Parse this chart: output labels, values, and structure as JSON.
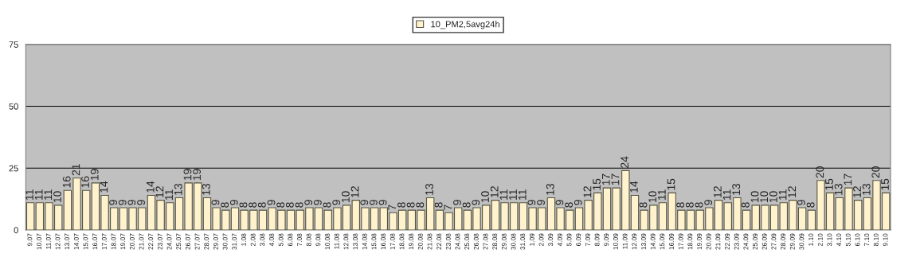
{
  "chart_data": {
    "type": "bar",
    "categories": [
      "9.07",
      "10.07",
      "11.07",
      "12.07",
      "13.07",
      "14.07",
      "15.07",
      "16.07",
      "17.07",
      "18.07",
      "19.07",
      "20.07",
      "21.07",
      "22.07",
      "23.07",
      "24.07",
      "25.07",
      "26.07",
      "27.07",
      "28.07",
      "29.07",
      "30.07",
      "31.07",
      "1.08",
      "2.08",
      "3.08",
      "4.08",
      "5.08",
      "6.08",
      "7.08",
      "8.08",
      "9.08",
      "10.08",
      "11.08",
      "12.08",
      "13.08",
      "14.08",
      "15.08",
      "16.08",
      "17.08",
      "18.08",
      "19.08",
      "20.08",
      "21.08",
      "22.08",
      "23.08",
      "24.08",
      "25.08",
      "26.08",
      "27.08",
      "28.08",
      "29.08",
      "30.08",
      "31.08",
      "1.09",
      "2.09",
      "3.09",
      "4.09",
      "5.09",
      "6.09",
      "7.09",
      "8.09",
      "9.09",
      "10.09",
      "11.09",
      "12.09",
      "13.09",
      "14.09",
      "15.09",
      "16.09",
      "17.09",
      "18.09",
      "19.09",
      "20.09",
      "21.09",
      "22.09",
      "23.09",
      "24.09",
      "25.09",
      "26.09",
      "27.09",
      "28.09",
      "29.09",
      "30.09",
      "1.10",
      "2.10",
      "3.10",
      "4.10",
      "5.10",
      "6.10",
      "7.10",
      "8.10",
      "9.10"
    ],
    "series": [
      {
        "name": "10_PM2,5avg24h",
        "color": "#fff2cc",
        "values": [
          11,
          11,
          11,
          10,
          16,
          21,
          16,
          19,
          14,
          9,
          9,
          9,
          9,
          14,
          12,
          11,
          13,
          19,
          19,
          13,
          9,
          8,
          9,
          8,
          8,
          8,
          9,
          8,
          8,
          8,
          9,
          9,
          8,
          9,
          10,
          12,
          9,
          9,
          9,
          7,
          8,
          8,
          8,
          13,
          8,
          7,
          9,
          8,
          9,
          10,
          12,
          11,
          11,
          11,
          9,
          9,
          13,
          9,
          8,
          9,
          12,
          15,
          17,
          17,
          24,
          14,
          8,
          10,
          11,
          15,
          8,
          8,
          8,
          9,
          12,
          11,
          13,
          8,
          10,
          10,
          10,
          11,
          12,
          9,
          8,
          20,
          15,
          13,
          17,
          12,
          13,
          20,
          15
        ]
      }
    ],
    "ylim": [
      0,
      75
    ],
    "yticks": [
      0,
      25,
      50,
      75
    ],
    "grid": "y",
    "legend": "top",
    "data_labels": true
  }
}
